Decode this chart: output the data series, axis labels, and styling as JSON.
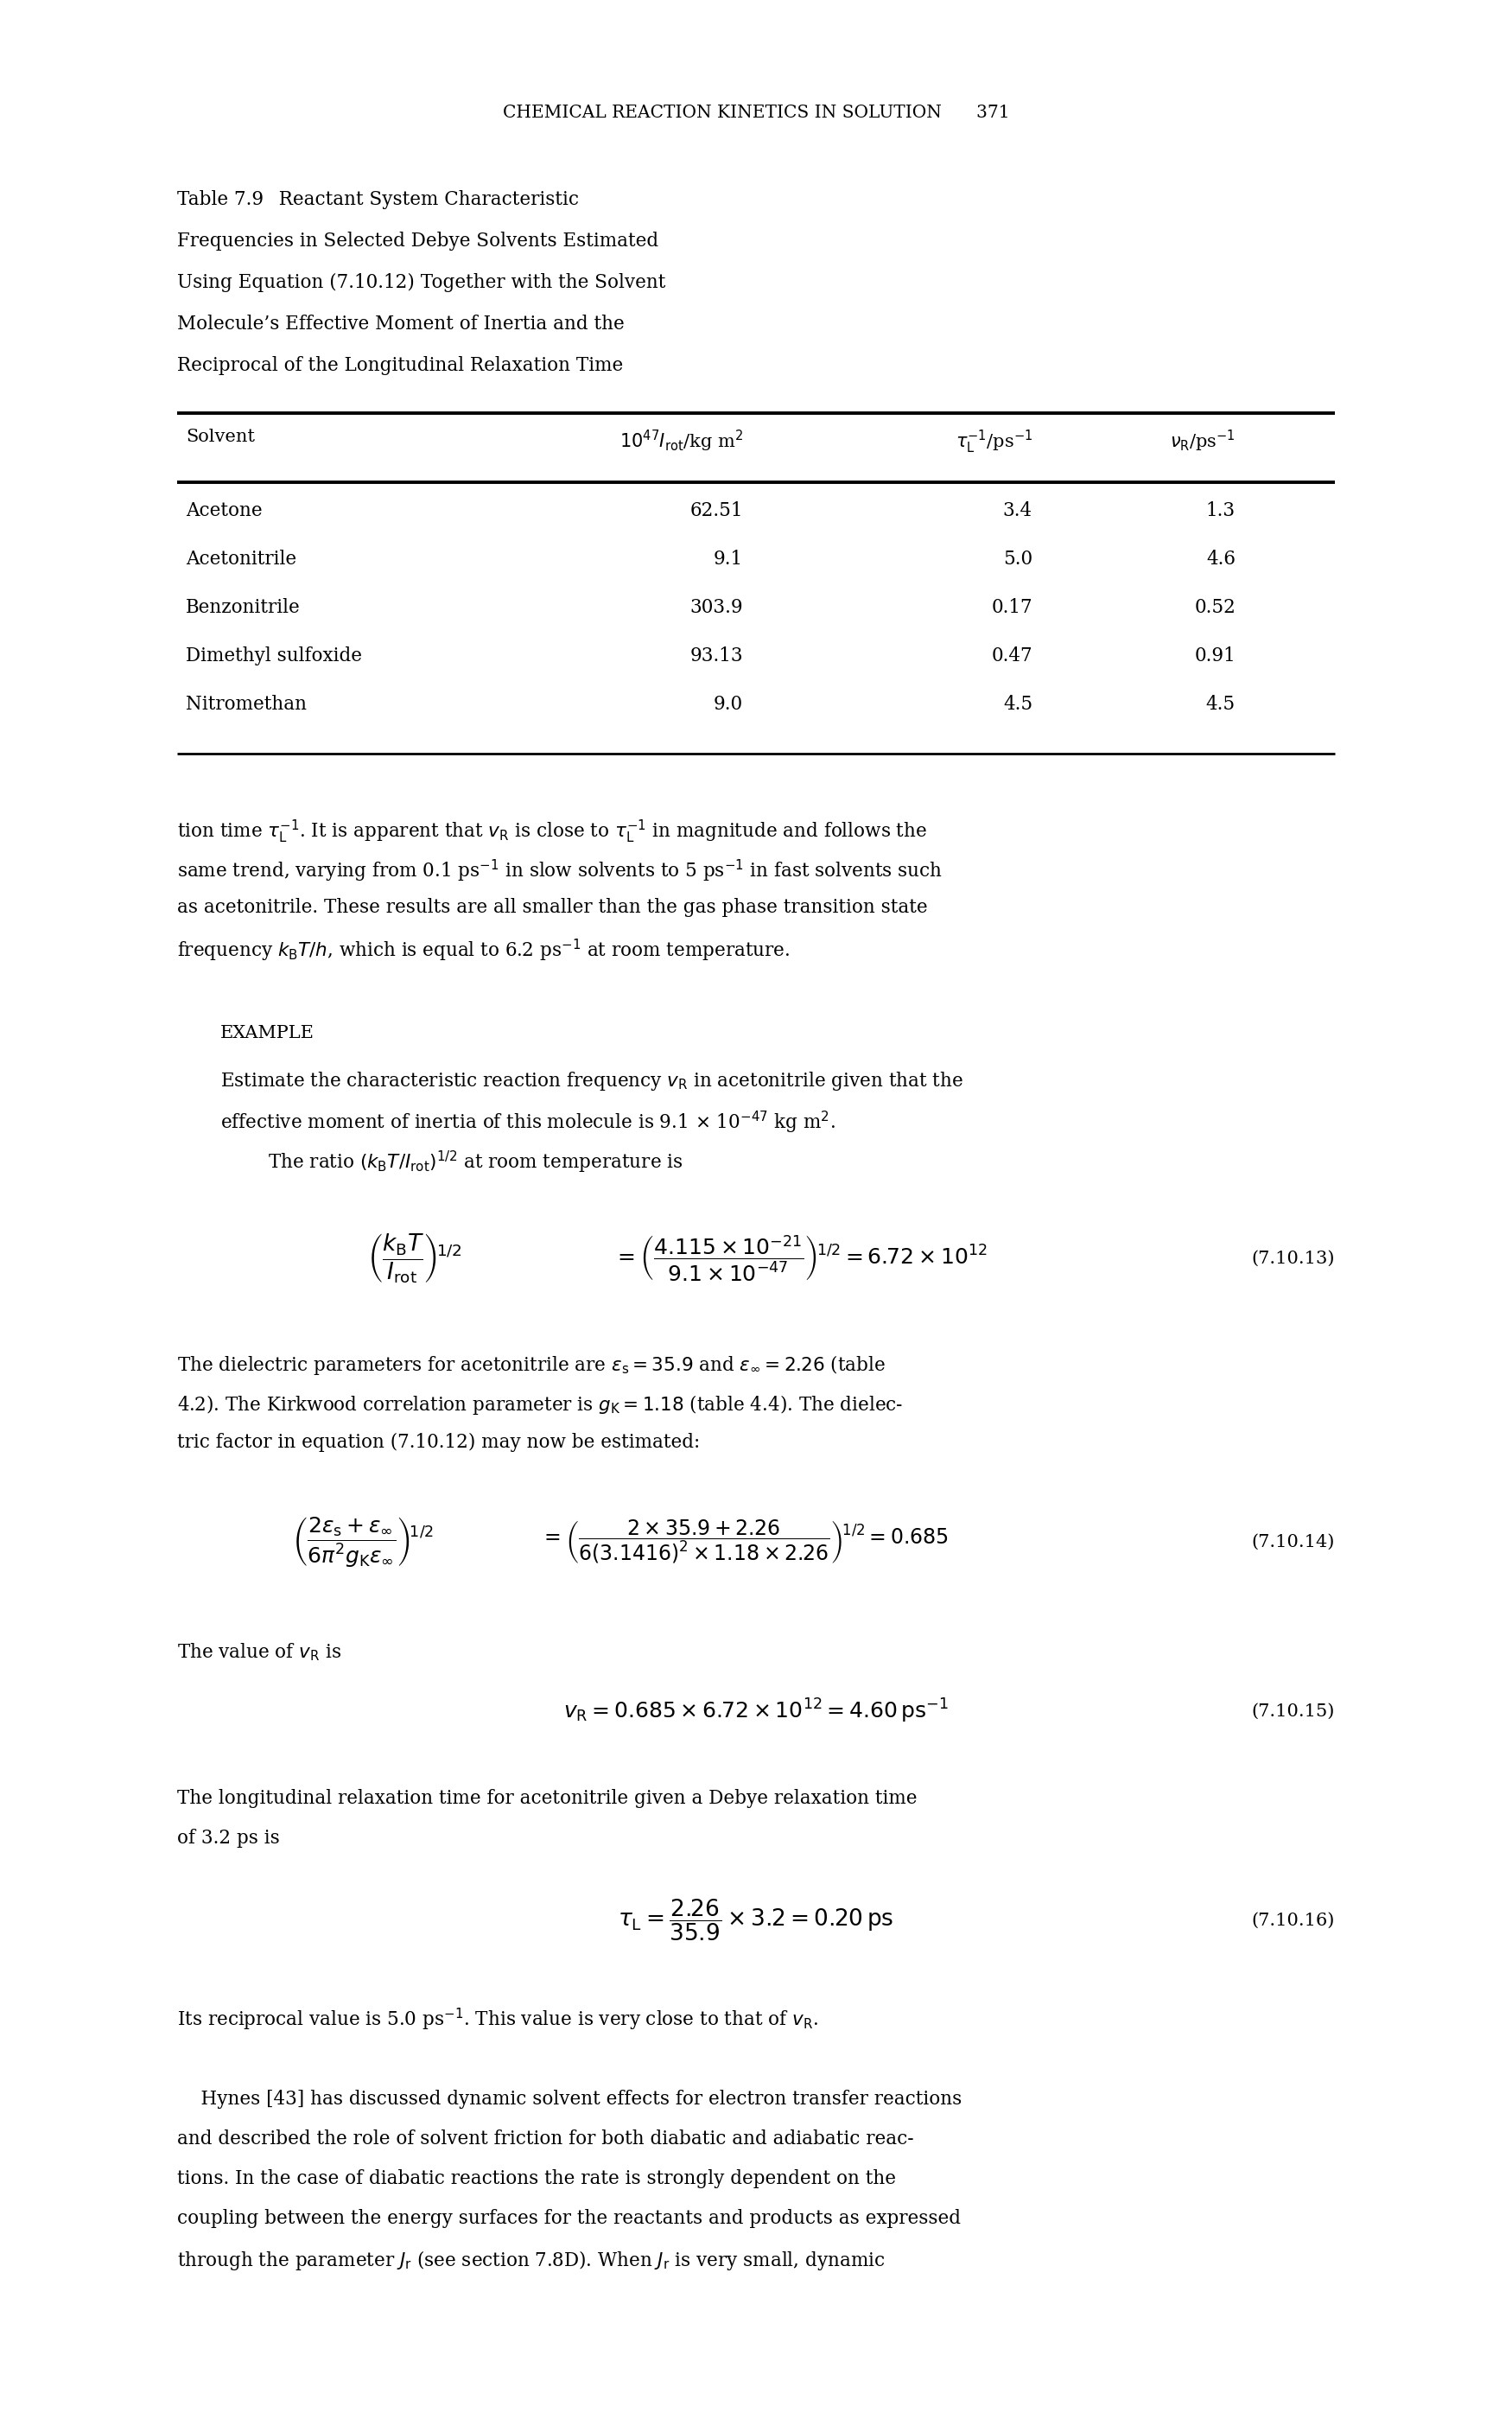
{
  "page_header": "CHEMICAL REACTION KINETICS IN SOLUTION  371",
  "table_caption_lines": [
    "Table 7.9  Reactant System Characteristic",
    "Frequencies in Selected Debye Solvents Estimated",
    "Using Equation (7.10.12) Together with the Solvent",
    "Molecule’s Effective Moment of Inertia and the",
    "Reciprocal of the Longitudinal Relaxation Time"
  ],
  "col_headers": [
    "Solvent",
    "$10^{47}I_{\\rm rot}$/kg m$^2$",
    "$\\tau_{\\rm L}^{-1}$/ps$^{-1}$",
    "$\\nu_{\\rm R}$/ps$^{-1}$"
  ],
  "table_rows": [
    [
      "Acetone",
      "62.51",
      "3.4",
      "1.3"
    ],
    [
      "Acetonitrile",
      "9.1",
      "5.0",
      "4.6"
    ],
    [
      "Benzonitrile",
      "303.9",
      "0.17",
      "0.52"
    ],
    [
      "Dimethyl sulfoxide",
      "93.13",
      "0.47",
      "0.91"
    ],
    [
      "Nitromethan",
      "9.0",
      "4.5",
      "4.5"
    ]
  ],
  "bg_color": "#ffffff",
  "text_color": "#000000"
}
